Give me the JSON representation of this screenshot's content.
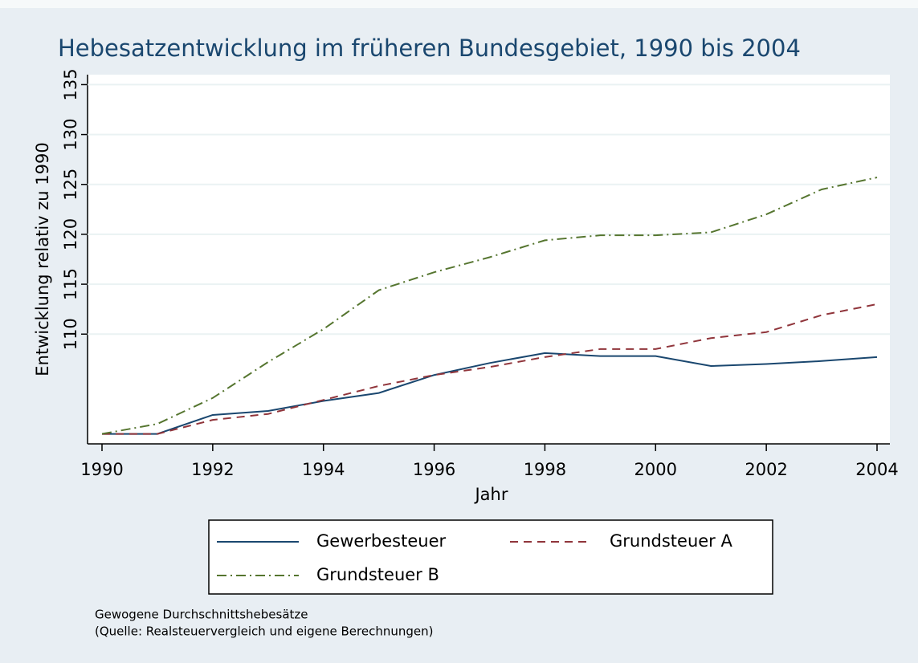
{
  "chart_data": {
    "type": "line",
    "title": "Hebesatzentwicklung im früheren Bundesgebiet, 1990 bis 2004",
    "x_label": "Jahr",
    "y_label": "Entwicklung relativ zu 1990",
    "x": [
      1990,
      1991,
      1992,
      1993,
      1994,
      1995,
      1996,
      1997,
      1998,
      1999,
      2000,
      2001,
      2002,
      2003,
      2004
    ],
    "series": [
      {
        "name": "Gewerbesteuer",
        "color": "#1a476f",
        "dash": "solid",
        "values": [
          100,
          100,
          101.9,
          102.3,
          103.3,
          104.1,
          105.9,
          107.1,
          108.1,
          107.8,
          107.8,
          106.8,
          107.0,
          107.3,
          107.7
        ]
      },
      {
        "name": "Grundsteuer A",
        "color": "#90353b",
        "dash": "dashed",
        "values": [
          100,
          100,
          101.4,
          102.0,
          103.4,
          104.8,
          105.9,
          106.7,
          107.7,
          108.5,
          108.5,
          109.6,
          110.2,
          111.9,
          113.0
        ]
      },
      {
        "name": "Grundsteuer B",
        "color": "#55752f",
        "dash": "dashdot",
        "values": [
          100,
          101.0,
          103.6,
          107.2,
          110.5,
          114.4,
          116.2,
          117.7,
          119.4,
          119.9,
          119.9,
          120.2,
          122.0,
          124.5,
          125.7
        ]
      }
    ],
    "xlim": [
      1990,
      2004
    ],
    "xticks": [
      1990,
      1992,
      1994,
      1996,
      1998,
      2000,
      2002,
      2004
    ],
    "ylim": [
      99,
      136
    ],
    "yticks": [
      110,
      115,
      120,
      125,
      130,
      135
    ],
    "grid": true,
    "notes": [
      "Gewogene Durchschnittshebesätze",
      "(Quelle: Realsteuervergleich und eigene Berechnungen)"
    ]
  }
}
